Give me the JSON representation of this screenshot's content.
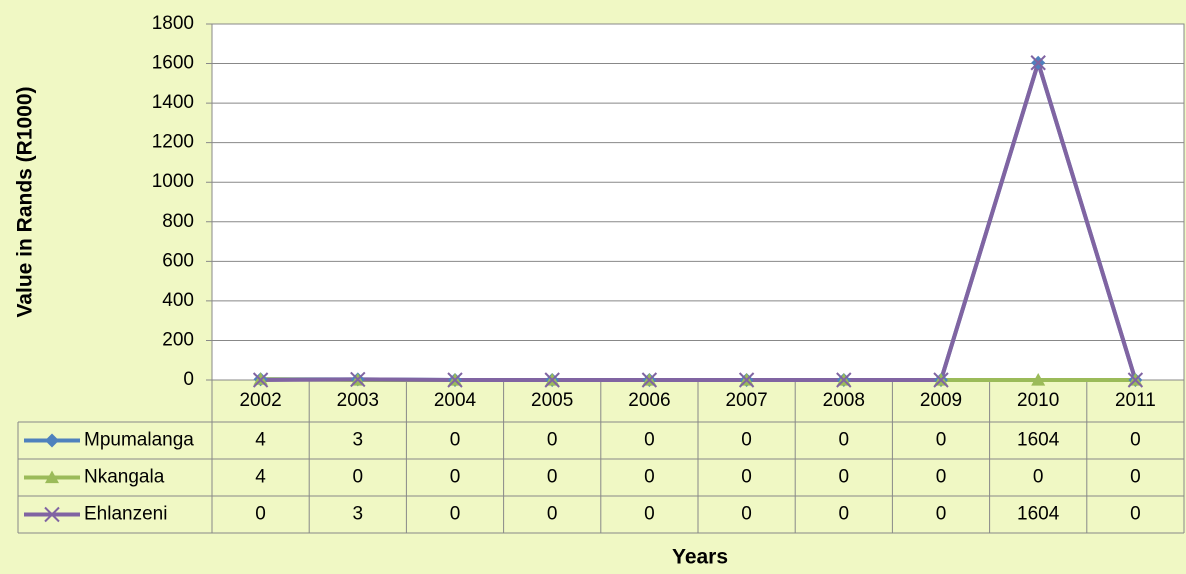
{
  "chart_data": {
    "type": "line",
    "y_label": "Value in Rands (R1000)",
    "x_label": "Years",
    "categories": [
      "2002",
      "2003",
      "2004",
      "2005",
      "2006",
      "2007",
      "2008",
      "2009",
      "2010",
      "2011"
    ],
    "series": [
      {
        "name": "Mpumalanga",
        "color": "#4f81bd",
        "marker": "diamond",
        "values": [
          4,
          3,
          0,
          0,
          0,
          0,
          0,
          0,
          1604,
          0
        ]
      },
      {
        "name": "Nkangala",
        "color": "#9bbb59",
        "marker": "triangle",
        "values": [
          4,
          0,
          0,
          0,
          0,
          0,
          0,
          0,
          0,
          0
        ]
      },
      {
        "name": "Ehlanzeni",
        "color": "#8064a2",
        "marker": "x",
        "values": [
          0,
          3,
          0,
          0,
          0,
          0,
          0,
          0,
          1604,
          0
        ]
      }
    ],
    "ylim": [
      0,
      1800
    ],
    "yticks": [
      0,
      200,
      400,
      600,
      800,
      1000,
      1200,
      1400,
      1600,
      1800
    ],
    "grid": true,
    "data_table": true
  }
}
